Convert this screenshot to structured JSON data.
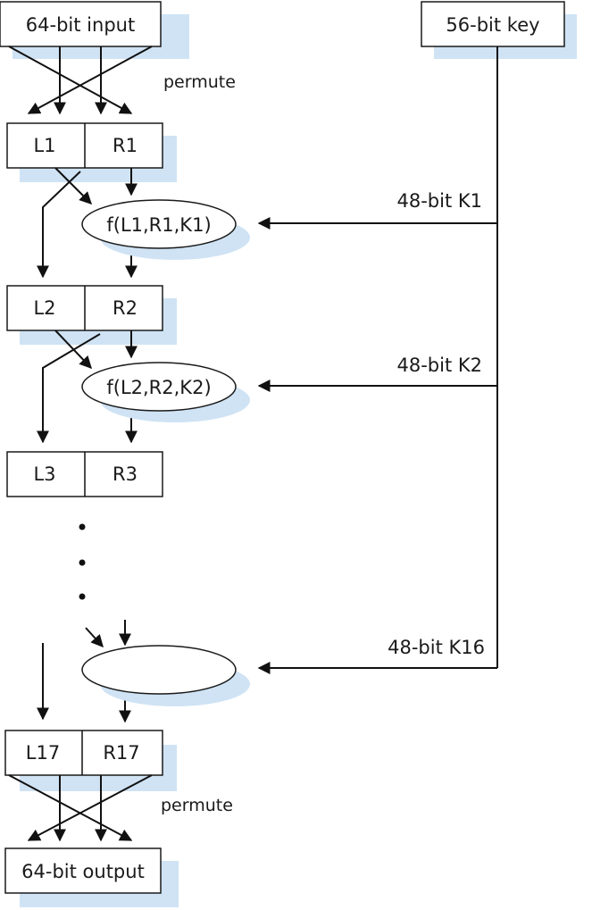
{
  "input_label": "64-bit input",
  "key_label": "56-bit key",
  "permute_top": "permute",
  "permute_bottom": "permute",
  "output_label": "64-bit output",
  "round1": {
    "left": "L1",
    "right": "R1",
    "func": "f(L1,R1,K1)",
    "key": "48-bit K1"
  },
  "round2": {
    "left": "L2",
    "right": "R2",
    "func": "f(L2,R2,K2)",
    "key": "48-bit K2"
  },
  "round3": {
    "left": "L3",
    "right": "R3"
  },
  "round16": {
    "func": "",
    "key": "48-bit K16"
  },
  "final": {
    "left": "L17",
    "right": "R17"
  },
  "colors": {
    "shadow": "#cfe3f4",
    "stroke": "#1a1a1a"
  }
}
